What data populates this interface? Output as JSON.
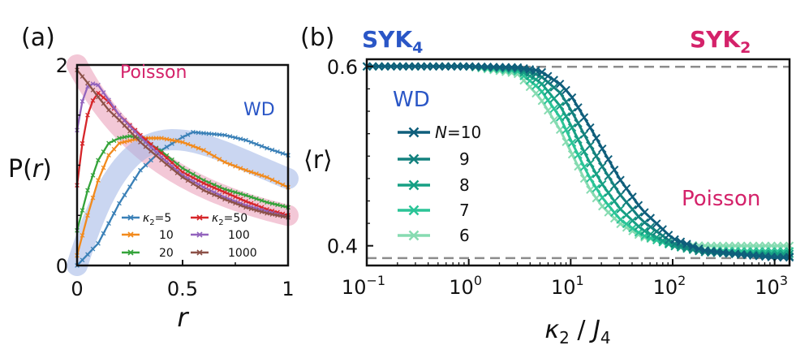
{
  "colors": {
    "poisson": "#d4226a",
    "wd": "#2a56c6",
    "poisson_band": "#e99bb6",
    "wd_band": "#9eb4e6",
    "dashed": "#8c8c8c",
    "k5": "#3a80b7",
    "k10": "#f28a1c",
    "k20": "#34a33a",
    "k50": "#d6262a",
    "k100": "#9263bd",
    "k1000": "#8c5148",
    "n10": "#0f5e7b",
    "n9": "#13817e",
    "n8": "#16a084",
    "n7": "#2bc497",
    "n6": "#86dbb1"
  },
  "chart_data": [
    {
      "panel_label": "(a)",
      "type": "line",
      "xlabel": "r",
      "ylabel_main": "P(",
      "ylabel_var": "r",
      "ylabel_close": ")",
      "xlim": [
        0,
        1
      ],
      "ylim": [
        0,
        2
      ],
      "xticks": [
        {
          "value": 0,
          "label": "0"
        },
        {
          "value": 0.5,
          "label": "0.5"
        },
        {
          "value": 1,
          "label": "1"
        }
      ],
      "yticks": [
        {
          "value": 0,
          "label": "0"
        },
        {
          "value": 2,
          "label": "2"
        }
      ],
      "annotations": {
        "poisson": "Poisson",
        "wd": "WD"
      },
      "legend": {
        "kappa": "κ",
        "sub": "2",
        "entries": [
          "=5",
          "10",
          "20",
          "=50",
          "100",
          "1000"
        ]
      },
      "reference_curves": [
        "Poisson",
        "WD"
      ],
      "series": [
        {
          "name": "κ2=5",
          "key": "k5",
          "x": [
            0,
            0.1,
            0.2,
            0.3,
            0.4,
            0.5,
            0.55,
            0.6,
            0.7,
            0.8,
            0.9,
            1.0
          ],
          "y": [
            0,
            0.22,
            0.62,
            0.95,
            1.15,
            1.28,
            1.33,
            1.32,
            1.3,
            1.25,
            1.17,
            1.1
          ]
        },
        {
          "name": "κ2=10",
          "key": "k10",
          "x": [
            0,
            0.05,
            0.1,
            0.15,
            0.2,
            0.3,
            0.4,
            0.5,
            0.6,
            0.7,
            0.8,
            0.9,
            1.0
          ],
          "y": [
            0.1,
            0.5,
            0.85,
            1.1,
            1.22,
            1.27,
            1.27,
            1.23,
            1.15,
            1.03,
            0.95,
            0.88,
            0.78
          ]
        },
        {
          "name": "κ2=20",
          "key": "k20",
          "x": [
            0,
            0.05,
            0.1,
            0.15,
            0.2,
            0.25,
            0.3,
            0.4,
            0.5,
            0.6,
            0.7,
            0.8,
            0.9,
            1.0
          ],
          "y": [
            0.35,
            0.75,
            1.05,
            1.22,
            1.27,
            1.29,
            1.27,
            1.14,
            0.97,
            0.85,
            0.76,
            0.7,
            0.63,
            0.58
          ]
        },
        {
          "name": "κ2=50",
          "key": "k50",
          "x": [
            0,
            0.03,
            0.06,
            0.1,
            0.15,
            0.2,
            0.3,
            0.4,
            0.5,
            0.6,
            0.7,
            0.8,
            0.9,
            1.0
          ],
          "y": [
            0.8,
            1.3,
            1.6,
            1.72,
            1.63,
            1.5,
            1.3,
            1.12,
            0.93,
            0.82,
            0.73,
            0.64,
            0.56,
            0.5
          ]
        },
        {
          "name": "κ2=100",
          "key": "k100",
          "x": [
            0,
            0.02,
            0.04,
            0.06,
            0.1,
            0.15,
            0.2,
            0.3,
            0.4,
            0.5,
            0.6,
            0.7,
            0.8,
            0.9,
            1.0
          ],
          "y": [
            1.35,
            1.6,
            1.75,
            1.82,
            1.8,
            1.65,
            1.5,
            1.28,
            1.08,
            0.9,
            0.78,
            0.68,
            0.6,
            0.54,
            0.48
          ]
        },
        {
          "name": "κ2=1000",
          "key": "k1000",
          "x": [
            0,
            0.05,
            0.1,
            0.15,
            0.2,
            0.3,
            0.4,
            0.5,
            0.6,
            0.7,
            0.8,
            0.9,
            1.0
          ],
          "y": [
            1.95,
            1.82,
            1.68,
            1.55,
            1.45,
            1.23,
            1.05,
            0.88,
            0.75,
            0.66,
            0.58,
            0.52,
            0.48
          ]
        }
      ]
    },
    {
      "panel_label": "(b)",
      "type": "line",
      "xscale": "log",
      "xlabel_kappa": "κ",
      "xlabel_sub2": "2",
      "xlabel_slash": " / ",
      "xlabel_J": "J",
      "xlabel_sub4": "4",
      "ylabel": "⟨r⟩",
      "xlim": [
        0.1,
        1400
      ],
      "ylim": [
        0.378,
        0.608
      ],
      "xticks": [
        {
          "value": 0.1,
          "base": "10",
          "exp": "−1"
        },
        {
          "value": 1,
          "base": "10",
          "exp": "0"
        },
        {
          "value": 10,
          "base": "10",
          "exp": "1"
        },
        {
          "value": 100,
          "base": "10",
          "exp": "2"
        },
        {
          "value": 1000,
          "base": "10",
          "exp": "3"
        }
      ],
      "yticks": [
        {
          "value": 0.4,
          "label": "0.4"
        },
        {
          "value": 0.6,
          "label": "0.6"
        }
      ],
      "reference_lines": [
        {
          "name": "WD",
          "y": 0.5996
        },
        {
          "name": "Poisson",
          "y": 0.3863
        }
      ],
      "annotations": {
        "syk4": "SYK",
        "syk4_sub": "4",
        "syk2": "SYK",
        "syk2_sub": "2",
        "wd": "WD",
        "poisson": "Poisson"
      },
      "legend": {
        "n_label": "N",
        "entries": [
          "=10",
          "9",
          "8",
          "7",
          "6"
        ]
      },
      "series": [
        {
          "name": "N=10",
          "key": "n10",
          "x": [
            0.1,
            1,
            3,
            5,
            8,
            10,
            15,
            20,
            30,
            50,
            100,
            200,
            500,
            1000,
            1400
          ],
          "y": [
            0.6,
            0.6,
            0.599,
            0.595,
            0.58,
            0.568,
            0.535,
            0.51,
            0.475,
            0.44,
            0.408,
            0.395,
            0.39,
            0.387,
            0.387
          ]
        },
        {
          "name": "N=9",
          "key": "n9",
          "x": [
            0.1,
            1,
            3,
            5,
            8,
            10,
            15,
            20,
            30,
            50,
            100,
            200,
            500,
            1000,
            1400
          ],
          "y": [
            0.6,
            0.6,
            0.598,
            0.59,
            0.57,
            0.552,
            0.515,
            0.49,
            0.458,
            0.428,
            0.403,
            0.393,
            0.39,
            0.388,
            0.388
          ]
        },
        {
          "name": "N=8",
          "key": "n8",
          "x": [
            0.1,
            1,
            3,
            5,
            8,
            10,
            15,
            20,
            30,
            50,
            100,
            200,
            500,
            1000,
            1400
          ],
          "y": [
            0.6,
            0.6,
            0.597,
            0.583,
            0.555,
            0.535,
            0.495,
            0.47,
            0.442,
            0.418,
            0.4,
            0.393,
            0.391,
            0.391,
            0.391
          ]
        },
        {
          "name": "N=7",
          "key": "n7",
          "x": [
            0.1,
            1,
            3,
            5,
            8,
            10,
            15,
            20,
            30,
            50,
            100,
            200,
            500,
            1000,
            1400
          ],
          "y": [
            0.6,
            0.6,
            0.595,
            0.575,
            0.542,
            0.518,
            0.478,
            0.455,
            0.43,
            0.412,
            0.4,
            0.395,
            0.394,
            0.394,
            0.394
          ]
        },
        {
          "name": "N=6",
          "key": "n6",
          "x": [
            0.1,
            1,
            3,
            5,
            8,
            10,
            15,
            20,
            30,
            50,
            100,
            200,
            500,
            1000,
            1400
          ],
          "y": [
            0.6,
            0.6,
            0.592,
            0.565,
            0.528,
            0.505,
            0.465,
            0.445,
            0.425,
            0.41,
            0.402,
            0.4,
            0.4,
            0.4,
            0.4
          ]
        }
      ]
    }
  ]
}
